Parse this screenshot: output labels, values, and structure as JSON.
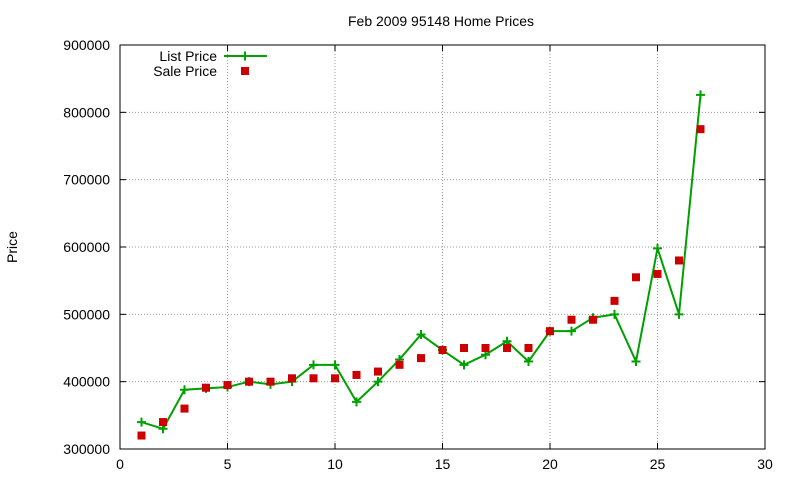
{
  "chart_data": {
    "type": "line",
    "title": "Feb 2009 95148 Home Prices",
    "xlabel": "",
    "ylabel": "Price",
    "xlim": [
      0,
      30
    ],
    "ylim": [
      300000,
      900000
    ],
    "x_ticks": [
      0,
      5,
      10,
      15,
      20,
      25,
      30
    ],
    "y_ticks": [
      300000,
      400000,
      500000,
      600000,
      700000,
      800000,
      900000
    ],
    "grid": true,
    "legend_position": "top-left",
    "series": [
      {
        "name": "List Price",
        "style": "line-with-plus-markers",
        "color": "#00a000",
        "x": [
          1,
          2,
          3,
          4,
          5,
          6,
          7,
          8,
          9,
          10,
          11,
          12,
          13,
          14,
          15,
          16,
          17,
          18,
          19,
          20,
          21,
          22,
          23,
          24,
          25,
          26,
          27
        ],
        "y": [
          340000,
          330000,
          388000,
          390000,
          392000,
          400000,
          396000,
          400000,
          425000,
          425000,
          370000,
          400000,
          433000,
          470000,
          447000,
          425000,
          440000,
          460000,
          430000,
          475000,
          475000,
          495000,
          500000,
          430000,
          598000,
          500000,
          826000
        ]
      },
      {
        "name": "Sale Price",
        "style": "square-markers",
        "color": "#cc0000",
        "x": [
          1,
          2,
          3,
          4,
          5,
          6,
          7,
          8,
          9,
          10,
          11,
          12,
          13,
          14,
          15,
          16,
          17,
          18,
          19,
          20,
          21,
          22,
          23,
          24,
          25,
          26,
          27
        ],
        "y": [
          320000,
          340000,
          360000,
          391000,
          395000,
          400000,
          400000,
          405000,
          405000,
          405000,
          410000,
          415000,
          425000,
          435000,
          447000,
          450000,
          450000,
          450000,
          450000,
          475000,
          492000,
          492000,
          520000,
          555000,
          560000,
          580000,
          775000
        ]
      }
    ]
  }
}
